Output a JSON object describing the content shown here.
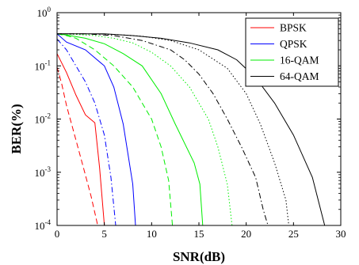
{
  "chart_data": {
    "type": "line",
    "title": "",
    "xlabel": "SNR(dB)",
    "ylabel": "BER(%)",
    "xlim": [
      0,
      30
    ],
    "ylim": [
      0.0001,
      1
    ],
    "yscale": "log",
    "grid": false,
    "legend_position": "top-right",
    "xticks": [
      "0",
      "5",
      "10",
      "15",
      "20",
      "25",
      "30"
    ],
    "yticks": [
      {
        "base": "10",
        "exp": "-4",
        "value": 0.0001
      },
      {
        "base": "10",
        "exp": "-3",
        "value": 0.001
      },
      {
        "base": "10",
        "exp": "-2",
        "value": 0.01
      },
      {
        "base": "10",
        "exp": "-1",
        "value": 0.1
      },
      {
        "base": "10",
        "exp": "0",
        "value": 1
      }
    ],
    "legend": [
      {
        "label": "BPSK",
        "color": "#ff0000"
      },
      {
        "label": "QPSK",
        "color": "#0000ff"
      },
      {
        "label": "16-QAM",
        "color": "#00ee00"
      },
      {
        "label": "64-QAM",
        "color": "#000000"
      }
    ],
    "series": [
      {
        "name": "BPSK",
        "color": "#ff0000",
        "dash": "solid",
        "x": [
          0,
          1,
          2,
          3,
          4,
          4.5,
          5.0
        ],
        "y": [
          0.17,
          0.075,
          0.028,
          0.012,
          0.0085,
          0.0012,
          0.0001
        ]
      },
      {
        "name": "BPSK",
        "color": "#ff0000",
        "dash": "dashed",
        "x": [
          0,
          0.5,
          1,
          2,
          2.8,
          3.6,
          4.3
        ],
        "y": [
          0.095,
          0.045,
          0.018,
          0.004,
          0.0012,
          0.00035,
          0.0001
        ]
      },
      {
        "name": "QPSK",
        "color": "#0000ff",
        "dash": "solid",
        "x": [
          0,
          1,
          3,
          5,
          6,
          7,
          8,
          8.3
        ],
        "y": [
          0.4,
          0.28,
          0.2,
          0.1,
          0.04,
          0.008,
          0.0006,
          0.0001
        ]
      },
      {
        "name": "QPSK",
        "color": "#0000ff",
        "dash": "dashdot",
        "x": [
          0,
          1,
          2,
          3,
          4,
          5,
          5.7,
          6.2
        ],
        "y": [
          0.32,
          0.2,
          0.1,
          0.05,
          0.02,
          0.005,
          0.0008,
          0.0001
        ]
      },
      {
        "name": "16-QAM",
        "color": "#00ee00",
        "dash": "solid",
        "x": [
          0,
          1,
          3,
          5,
          7,
          9,
          11,
          12.5,
          14.5,
          15.1,
          15.4
        ],
        "y": [
          0.4,
          0.38,
          0.33,
          0.26,
          0.17,
          0.1,
          0.03,
          0.008,
          0.0015,
          0.0006,
          0.0001
        ]
      },
      {
        "name": "16-QAM",
        "color": "#00ee00",
        "dash": "dashed",
        "x": [
          0,
          1,
          2,
          4,
          6,
          8,
          10,
          11,
          11.8,
          12.2
        ],
        "y": [
          0.4,
          0.37,
          0.33,
          0.2,
          0.1,
          0.04,
          0.01,
          0.003,
          0.0007,
          0.0001
        ]
      },
      {
        "name": "16-QAM",
        "color": "#00ee00",
        "dash": "dotted",
        "x": [
          0,
          2,
          4,
          6,
          8,
          10,
          12,
          14,
          16,
          17,
          18,
          18.5
        ],
        "y": [
          0.4,
          0.39,
          0.37,
          0.33,
          0.27,
          0.18,
          0.1,
          0.04,
          0.01,
          0.003,
          0.0006,
          0.0001
        ]
      },
      {
        "name": "64-QAM",
        "color": "#000000",
        "dash": "solid",
        "x": [
          0,
          2,
          5,
          8,
          11,
          14,
          17,
          19,
          21,
          23,
          25,
          27,
          28.3
        ],
        "y": [
          0.4,
          0.4,
          0.4,
          0.37,
          0.33,
          0.27,
          0.2,
          0.13,
          0.06,
          0.02,
          0.005,
          0.0008,
          0.0001
        ]
      },
      {
        "name": "64-QAM",
        "color": "#000000",
        "dash": "dotted",
        "x": [
          0,
          3,
          6,
          9,
          12,
          15,
          18,
          20,
          21.5,
          23,
          24.2,
          24.5
        ],
        "y": [
          0.4,
          0.4,
          0.39,
          0.36,
          0.3,
          0.2,
          0.09,
          0.03,
          0.008,
          0.0015,
          0.0003,
          0.0001
        ]
      },
      {
        "name": "64-QAM",
        "color": "#000000",
        "dash": "dashdot",
        "x": [
          0,
          3,
          6,
          9,
          12,
          13.5,
          15,
          16.5,
          18,
          19.5,
          21,
          21.8,
          22.3
        ],
        "y": [
          0.4,
          0.4,
          0.37,
          0.3,
          0.2,
          0.13,
          0.07,
          0.03,
          0.01,
          0.003,
          0.0008,
          0.0002,
          0.0001
        ]
      }
    ]
  }
}
